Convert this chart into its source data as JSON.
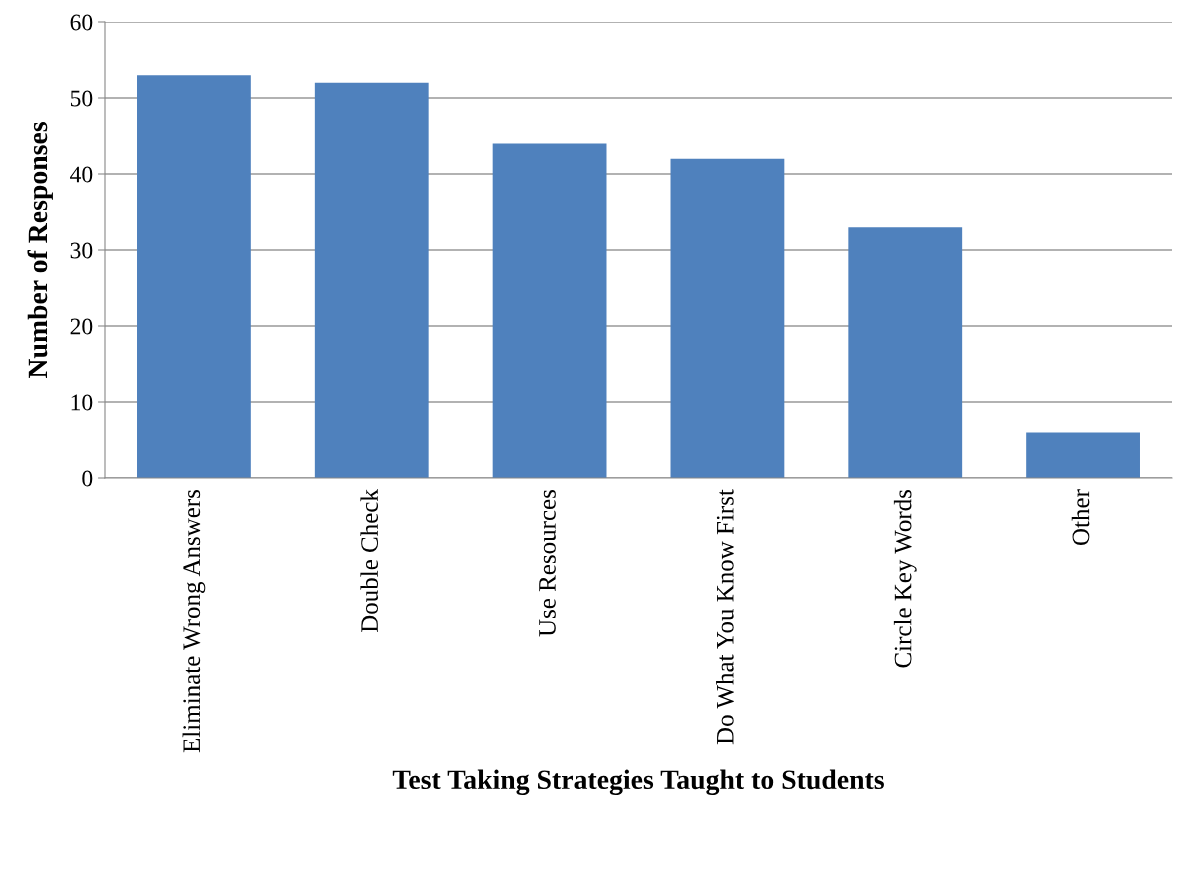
{
  "chart_data": {
    "type": "bar",
    "xlabel": "Test Taking Strategies Taught to Students",
    "ylabel": "Number of Responses",
    "categories": [
      "Eliminate Wrong Answers",
      "Double Check",
      "Use Resources",
      "Do What You Know First",
      "Circle Key Words",
      "Other"
    ],
    "values": [
      53,
      52,
      44,
      42,
      33,
      6
    ],
    "color": "#4f81bd",
    "ylim": [
      0,
      60
    ],
    "yticks": [
      0,
      10,
      20,
      30,
      40,
      50,
      60
    ],
    "grid": "y",
    "legend": false
  }
}
